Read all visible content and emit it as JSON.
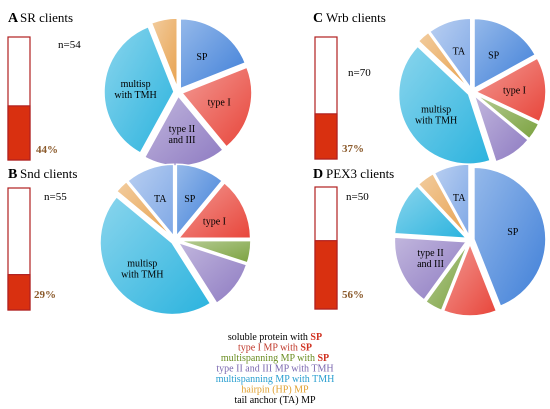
{
  "colors": {
    "soluble_sp": "#3F7FD8",
    "type1_sp": "#E8453A",
    "multispan_sp": "#7BA23F",
    "type2_3_tmh": "#8E7BC2",
    "multispan_tmh": "#2BB3DE",
    "hairpin": "#E8A24F",
    "tail_anchor": "#7FA8E6",
    "bar_fill": "#D93010",
    "bar_stroke": "#B02020",
    "pct_text": "#8B5A2B"
  },
  "legend": [
    {
      "prefix": "soluble protein with",
      "sp": "SP",
      "color_key": "soluble_sp",
      "text_color": "#000000"
    },
    {
      "prefix": "type I MP with",
      "sp": "SP",
      "color_key": "type1_sp",
      "text_color": "#C0392B"
    },
    {
      "prefix": "multispanning MP with",
      "sp": "SP",
      "color_key": "multispan_sp",
      "text_color": "#6B8E23"
    },
    {
      "prefix": "type II and III MP with TMH",
      "sp": "",
      "color_key": "type2_3_tmh",
      "text_color": "#7B68B0"
    },
    {
      "prefix": "multispanning MP with TMH",
      "sp": "",
      "color_key": "multispan_tmh",
      "text_color": "#2A9FD0"
    },
    {
      "prefix": "hairpin (HP) MP",
      "sp": "",
      "color_key": "hairpin",
      "text_color": "#E0A030"
    },
    {
      "prefix": "tail anchor (TA) MP",
      "sp": "",
      "color_key": "tail_anchor",
      "text_color": "#000000"
    }
  ],
  "chart_data": [
    {
      "type": "pie",
      "panel": "A",
      "title": "SR clients",
      "n_label": "n=54",
      "bar_percent": 44,
      "bar_label": "44%",
      "slices": [
        {
          "category": "soluble_sp",
          "value": 19,
          "label": "SP"
        },
        {
          "category": "type1_sp",
          "value": 20,
          "label": "type I"
        },
        {
          "category": "type2_3_tmh",
          "value": 19,
          "label": "type II\nand III"
        },
        {
          "category": "multispan_tmh",
          "value": 36,
          "label": "multisp\nwith TMH"
        },
        {
          "category": "hairpin",
          "value": 6,
          "label": ""
        }
      ]
    },
    {
      "type": "pie",
      "panel": "B",
      "title": "Snd clients",
      "n_label": "n=55",
      "bar_percent": 29,
      "bar_label": "29%",
      "slices": [
        {
          "category": "soluble_sp",
          "value": 11,
          "label": "SP"
        },
        {
          "category": "type1_sp",
          "value": 14,
          "label": "type I"
        },
        {
          "category": "multispan_sp",
          "value": 5,
          "label": ""
        },
        {
          "category": "type2_3_tmh",
          "value": 11,
          "label": ""
        },
        {
          "category": "multispan_tmh",
          "value": 45,
          "label": "multisp\nwith TMH"
        },
        {
          "category": "hairpin",
          "value": 3,
          "label": ""
        },
        {
          "category": "tail_anchor",
          "value": 11,
          "label": "TA"
        }
      ]
    },
    {
      "type": "pie",
      "panel": "C",
      "title": "Wrb clients",
      "n_label": "n=70",
      "bar_percent": 37,
      "bar_label": "37%",
      "slices": [
        {
          "category": "soluble_sp",
          "value": 17,
          "label": "SP"
        },
        {
          "category": "type1_sp",
          "value": 15,
          "label": "type I"
        },
        {
          "category": "multispan_sp",
          "value": 4,
          "label": ""
        },
        {
          "category": "type2_3_tmh",
          "value": 9,
          "label": ""
        },
        {
          "category": "multispan_tmh",
          "value": 42,
          "label": "multisp\nwith TMH"
        },
        {
          "category": "hairpin",
          "value": 3,
          "label": ""
        },
        {
          "category": "tail_anchor",
          "value": 10,
          "label": "TA"
        }
      ]
    },
    {
      "type": "pie",
      "panel": "D",
      "title": "PEX3 clients",
      "n_label": "n=50",
      "bar_percent": 56,
      "bar_label": "56%",
      "slices": [
        {
          "category": "soluble_sp",
          "value": 44,
          "label": "SP"
        },
        {
          "category": "type1_sp",
          "value": 12,
          "label": ""
        },
        {
          "category": "multispan_sp",
          "value": 4,
          "label": ""
        },
        {
          "category": "type2_3_tmh",
          "value": 16,
          "label": "type II\nand III"
        },
        {
          "category": "multispan_tmh",
          "value": 12,
          "label": ""
        },
        {
          "category": "hairpin",
          "value": 4,
          "label": ""
        },
        {
          "category": "tail_anchor",
          "value": 8,
          "label": "TA"
        }
      ]
    }
  ]
}
